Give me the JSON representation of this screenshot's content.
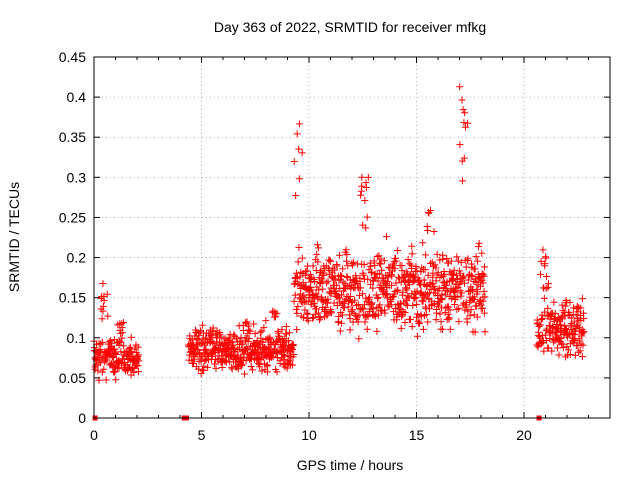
{
  "chart_data": {
    "type": "scatter",
    "title": "Day 363 of 2022, SRMTID for receiver mfkg",
    "xlabel": "GPS time / hours",
    "ylabel": "SRMTID / TECUs",
    "xlim": [
      0,
      24
    ],
    "ylim": [
      0,
      0.45
    ],
    "xticks": [
      "0",
      "5",
      "10",
      "15",
      "20"
    ],
    "yticks": [
      "0",
      "0.05",
      "0.1",
      "0.15",
      "0.2",
      "0.25",
      "0.3",
      "0.35",
      "0.4",
      "0.45"
    ],
    "grid": true,
    "marker": "plus",
    "color": "#ff0000",
    "segments": [
      {
        "name": "seg1",
        "x_start": 0.0,
        "x_end": 2.1,
        "base": 0.075,
        "spread": 0.035,
        "peaks": [
          [
            0.45,
            0.17
          ],
          [
            1.3,
            0.12
          ]
        ]
      },
      {
        "name": "seg2",
        "x_start": 4.4,
        "x_end": 9.3,
        "base": 0.085,
        "spread": 0.04,
        "peaks": [
          [
            7.0,
            0.12
          ],
          [
            8.3,
            0.14
          ]
        ]
      },
      {
        "name": "seg3",
        "x_start": 9.3,
        "x_end": 18.2,
        "base": 0.16,
        "spread": 0.07,
        "peaks": [
          [
            9.5,
            0.38
          ],
          [
            12.6,
            0.31
          ],
          [
            15.5,
            0.27
          ],
          [
            17.2,
            0.42
          ]
        ]
      },
      {
        "name": "seg4",
        "x_start": 20.6,
        "x_end": 22.8,
        "base": 0.11,
        "spread": 0.045,
        "peaks": [
          [
            21.0,
            0.21
          ],
          [
            21.9,
            0.15
          ]
        ]
      }
    ],
    "zero_points": [
      0.05,
      4.2,
      4.3,
      20.7
    ]
  }
}
